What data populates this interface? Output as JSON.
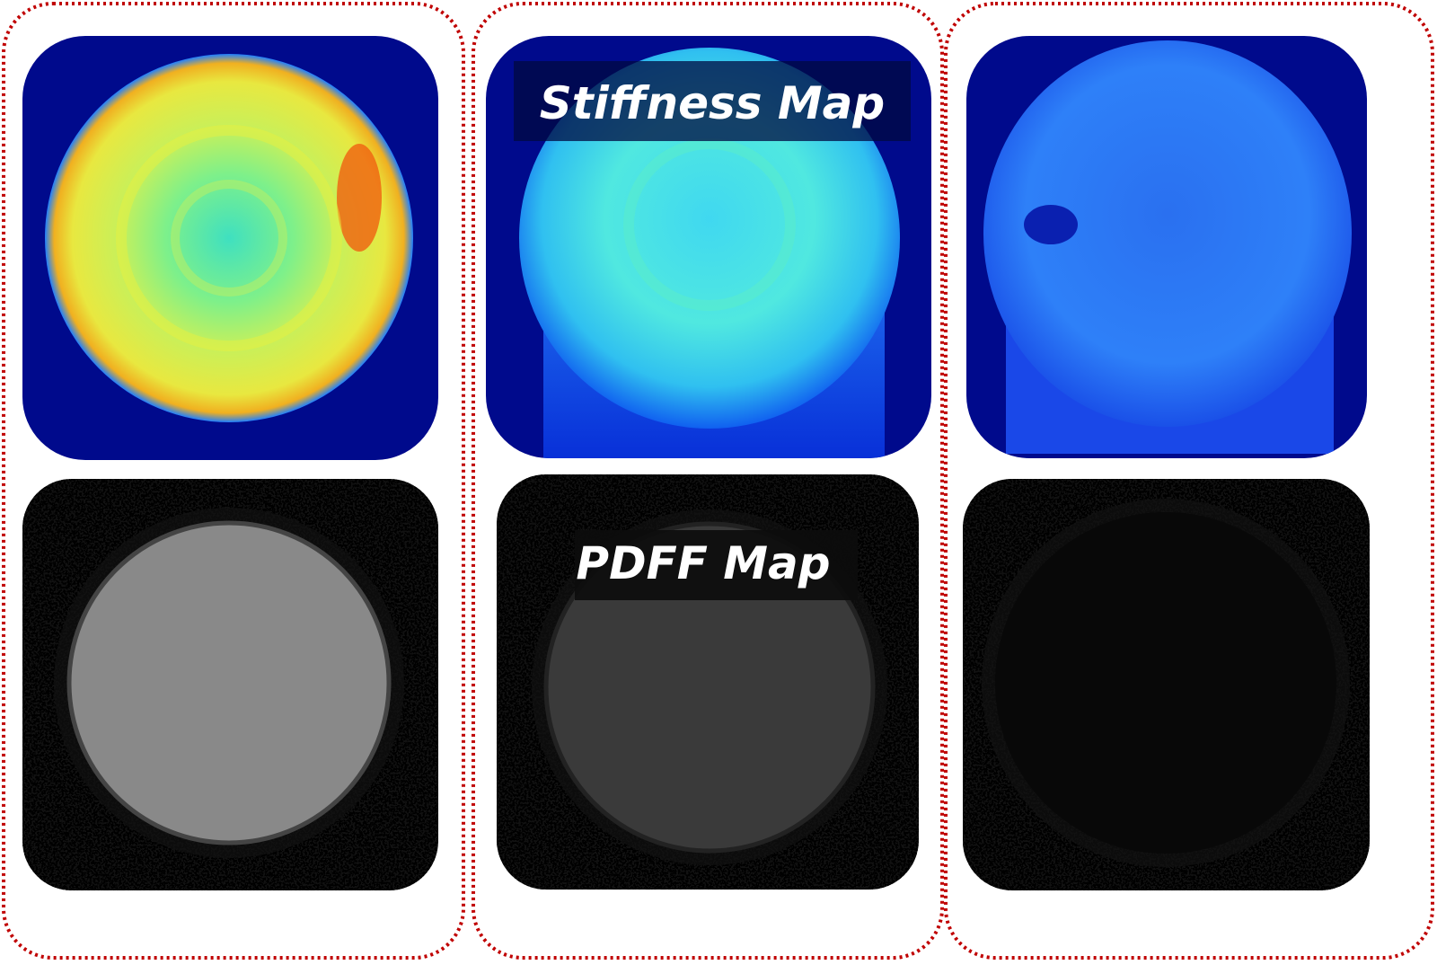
{
  "stiffness_label": "Stiffness Map",
  "pdff_label": "PDFF Map"
}
